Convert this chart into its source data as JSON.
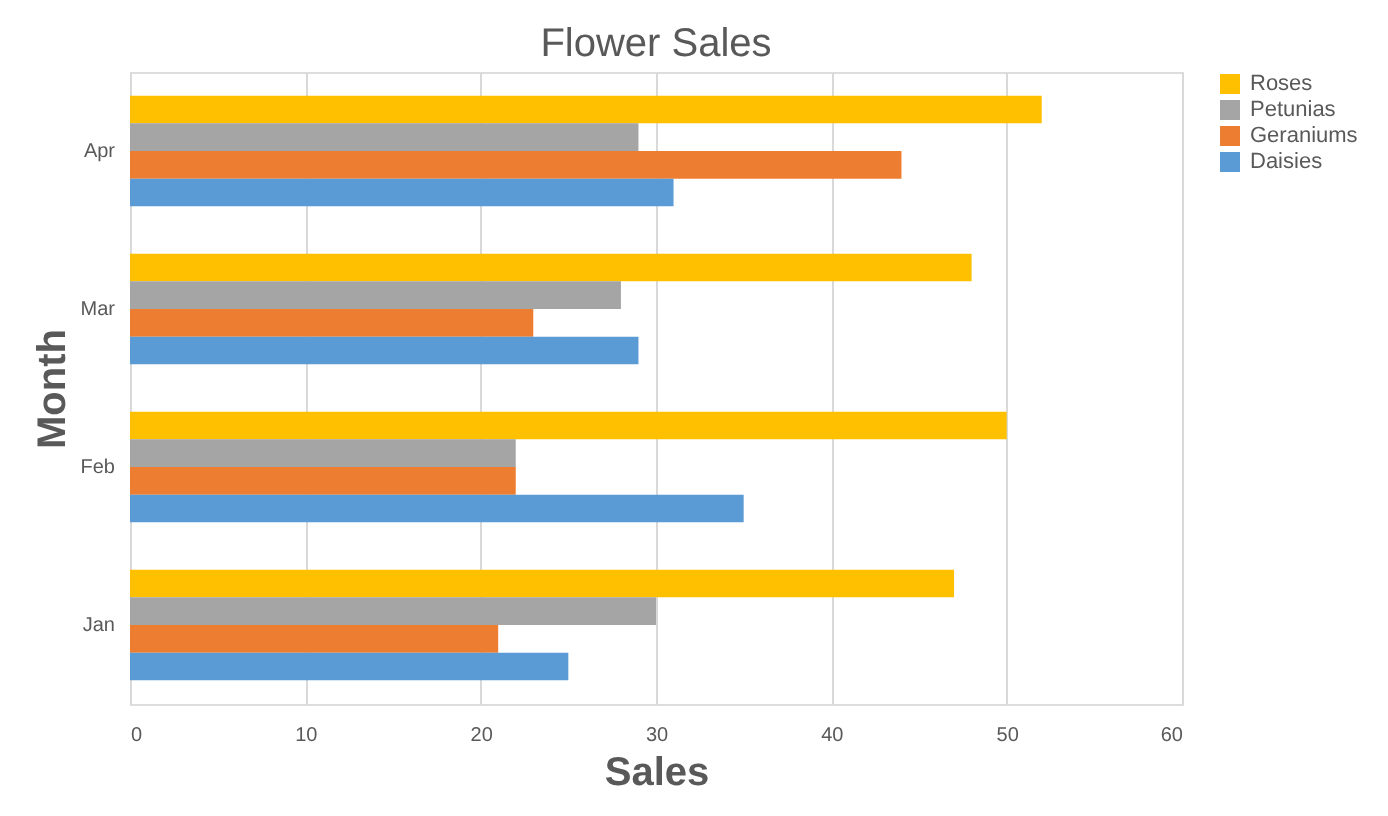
{
  "chart_data": {
    "type": "bar",
    "orientation": "horizontal",
    "title": "Flower Sales",
    "xlabel": "Sales",
    "ylabel": "Month",
    "categories": [
      "Apr",
      "Mar",
      "Feb",
      "Jan"
    ],
    "series": [
      {
        "name": "Roses",
        "color": "#ffc000",
        "values": [
          52,
          48,
          50,
          47
        ]
      },
      {
        "name": "Petunias",
        "color": "#a5a5a5",
        "values": [
          29,
          28,
          22,
          30
        ]
      },
      {
        "name": "Geraniums",
        "color": "#ed7d31",
        "values": [
          44,
          23,
          22,
          21
        ]
      },
      {
        "name": "Daisies",
        "color": "#5b9bd5",
        "values": [
          31,
          29,
          35,
          25
        ]
      }
    ],
    "xlim": [
      0,
      60
    ],
    "xticks": [
      0,
      10,
      20,
      30,
      40,
      50,
      60
    ],
    "grid": "x",
    "legend": "right"
  }
}
